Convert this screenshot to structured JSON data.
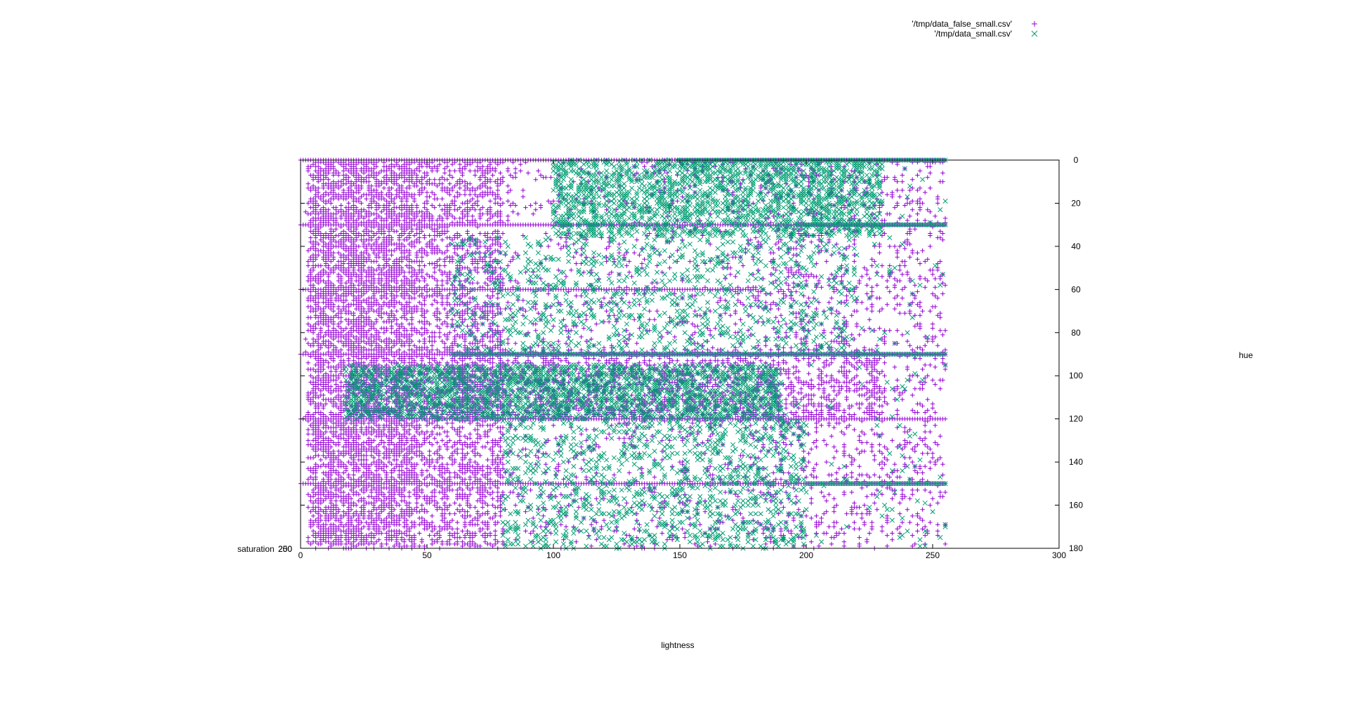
{
  "chart_data": {
    "type": "scatter",
    "xlabel": "lightness",
    "ylabel": "hue",
    "zlabel": "saturation",
    "z_tick_labels": [
      "200",
      "250"
    ],
    "xlim": [
      0,
      300
    ],
    "ylim": [
      0,
      180
    ],
    "y_reversed": true,
    "x_ticks": [
      "0",
      "50",
      "100",
      "150",
      "200",
      "250",
      "300"
    ],
    "y_ticks": [
      "0",
      "20",
      "40",
      "60",
      "80",
      "100",
      "120",
      "140",
      "160",
      "180"
    ],
    "grid": false,
    "legend_position": "top-right",
    "series": [
      {
        "name": "'/tmp/data_false_small.csv'",
        "marker": "+",
        "color": "#9400d3",
        "regions": [
          {
            "x": [
              2,
              255
            ],
            "y": [
              0,
              180
            ],
            "count": 2600
          },
          {
            "x": [
              3,
              80
            ],
            "y": [
              0,
              180
            ],
            "count": 4200
          },
          {
            "x": [
              5,
              45
            ],
            "y": [
              0,
              180
            ],
            "count": 2000
          },
          {
            "x": [
              60,
              230
            ],
            "y": [
              88,
              120
            ],
            "count": 1200
          },
          {
            "x": [
              180,
              255
            ],
            "y": [
              0,
              180
            ],
            "count": 700
          }
        ],
        "bands": [
          {
            "y": 0,
            "x": [
              0,
              255
            ]
          },
          {
            "y": 30,
            "x": [
              0,
              255
            ]
          },
          {
            "y": 60,
            "x": [
              0,
              180
            ]
          },
          {
            "y": 90,
            "x": [
              0,
              255
            ]
          },
          {
            "y": 120,
            "x": [
              0,
              255
            ]
          },
          {
            "y": 150,
            "x": [
              0,
              255
            ]
          }
        ]
      },
      {
        "name": "'/tmp/data_small.csv'",
        "marker": "x",
        "color": "#009e73",
        "regions": [
          {
            "x": [
              100,
              230
            ],
            "y": [
              0,
              35
            ],
            "count": 2000
          },
          {
            "x": [
              18,
              190
            ],
            "y": [
              95,
              120
            ],
            "count": 2600
          },
          {
            "x": [
              60,
              220
            ],
            "y": [
              35,
              90
            ],
            "count": 900
          },
          {
            "x": [
              80,
              200
            ],
            "y": [
              120,
              180
            ],
            "count": 1100
          },
          {
            "x": [
              150,
              255
            ],
            "y": [
              0,
              180
            ],
            "count": 300
          }
        ],
        "bands": [
          {
            "y": 0,
            "x": [
              150,
              255
            ]
          },
          {
            "y": 30,
            "x": [
              200,
              255
            ]
          },
          {
            "y": 90,
            "x": [
              60,
              255
            ]
          },
          {
            "y": 150,
            "x": [
              200,
              255
            ]
          }
        ]
      }
    ]
  }
}
